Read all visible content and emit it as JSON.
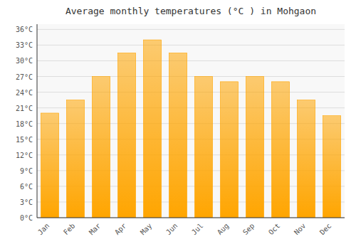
{
  "chart_data": {
    "type": "bar",
    "title": "Average monthly temperatures (°C ) in Mohgaon",
    "categories": [
      "Jan",
      "Feb",
      "Mar",
      "Apr",
      "May",
      "Jun",
      "Jul",
      "Aug",
      "Sep",
      "Oct",
      "Nov",
      "Dec"
    ],
    "values": [
      20.0,
      22.5,
      27.0,
      31.5,
      34.0,
      31.5,
      27.0,
      26.0,
      27.0,
      26.0,
      22.5,
      19.5
    ],
    "color": "#FFA500",
    "ylim": [
      0,
      37
    ],
    "yticks": [
      {
        "value": 0,
        "label": "0°C"
      },
      {
        "value": 3,
        "label": "3°C"
      },
      {
        "value": 6,
        "label": "6°C"
      },
      {
        "value": 9,
        "label": "9°C"
      },
      {
        "value": 12,
        "label": "12°C"
      },
      {
        "value": 15,
        "label": "15°C"
      },
      {
        "value": 18,
        "label": "18°C"
      },
      {
        "value": 21,
        "label": "21°C"
      },
      {
        "value": 24,
        "label": "24°C"
      },
      {
        "value": 27,
        "label": "27°C"
      },
      {
        "value": 30,
        "label": "30°C"
      },
      {
        "value": 33,
        "label": "33°C"
      },
      {
        "value": 36,
        "label": "36°C"
      }
    ],
    "grid": true
  }
}
